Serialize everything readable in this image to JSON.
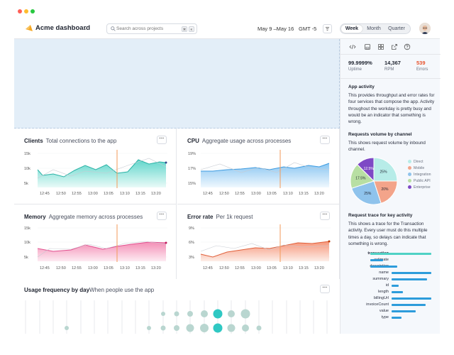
{
  "app": {
    "title": "Acme dashboard"
  },
  "search": {
    "placeholder": "Search across projects",
    "kbd1": "⌘",
    "kbd2": "K"
  },
  "date_range": "May 9 –May 16",
  "timezone": "GMT -5",
  "periods": [
    {
      "label": "Week"
    },
    {
      "label": "Month"
    },
    {
      "label": "Quarter"
    }
  ],
  "selected_period": "Week",
  "cards": {
    "clients": {
      "title": "Clients",
      "subtitle": "Total connections to the app",
      "y_ticks": [
        "15k",
        "10k",
        "5k"
      ]
    },
    "cpu": {
      "title": "CPU",
      "subtitle": "Aggregate usage across processes",
      "y_ticks": [
        "19%",
        "17%",
        "15%"
      ]
    },
    "memory": {
      "title": "Memory",
      "subtitle": "Aggregate memory across processes",
      "y_ticks": [
        "15k",
        "10k",
        "5k"
      ]
    },
    "error": {
      "title": "Error rate",
      "subtitle": "Per 1k request",
      "y_ticks": [
        "9%",
        "6%",
        "3%"
      ]
    }
  },
  "x_ticks": [
    "12:45",
    "12:50",
    "12:55",
    "13:00",
    "13:05",
    "13:10",
    "13:15",
    "13:20"
  ],
  "usage": {
    "title": "Usage frequency by day",
    "subtitle": "When people use the app"
  },
  "more_label": "···",
  "sidebar": {
    "stats": [
      {
        "value": "99.9999%",
        "label": "Uptime",
        "color": "#1f2430"
      },
      {
        "value": "14,367",
        "label": "RPM",
        "color": "#1f2430"
      },
      {
        "value": "539",
        "label": "Errors",
        "color": "#e8532d"
      }
    ],
    "activity": {
      "title": "App activity",
      "body": "This provides throughput and error rates for four services that compose the app. Activity throughout the workday is pretty busy and would be an indicator that something is wrong."
    },
    "channel": {
      "title": "Requests volume by channel",
      "body": "This shows request volume by inbound channel.",
      "legend": [
        "Direct",
        "Mobile",
        "Integration",
        "Public API",
        "Enterprise"
      ]
    },
    "trace": {
      "title": "Request trace for key activity",
      "body": "This shows a trace for the Transaction activity. Every user must do this multiple times a day, so delays can indicate that something is wrong.",
      "rows": [
        "transaction",
        "estimate",
        "description",
        "name",
        "summary",
        "id",
        "length",
        "billingUrl",
        "invoiceCount",
        "value",
        "type"
      ]
    }
  },
  "chart_data": {
    "type": "pie",
    "title": "Requests volume by channel",
    "categories": [
      "Direct",
      "Mobile",
      "Integration",
      "Public API",
      "Enterprise"
    ],
    "values": [
      25,
      20,
      25,
      17.5,
      12.5
    ],
    "labels": [
      "25%",
      "20%",
      "25%",
      "17.5%",
      "12.5%"
    ],
    "colors": [
      "#b7ece8",
      "#f3a48a",
      "#8fc3ec",
      "#b8dfa3",
      "#7e49c5"
    ]
  }
}
